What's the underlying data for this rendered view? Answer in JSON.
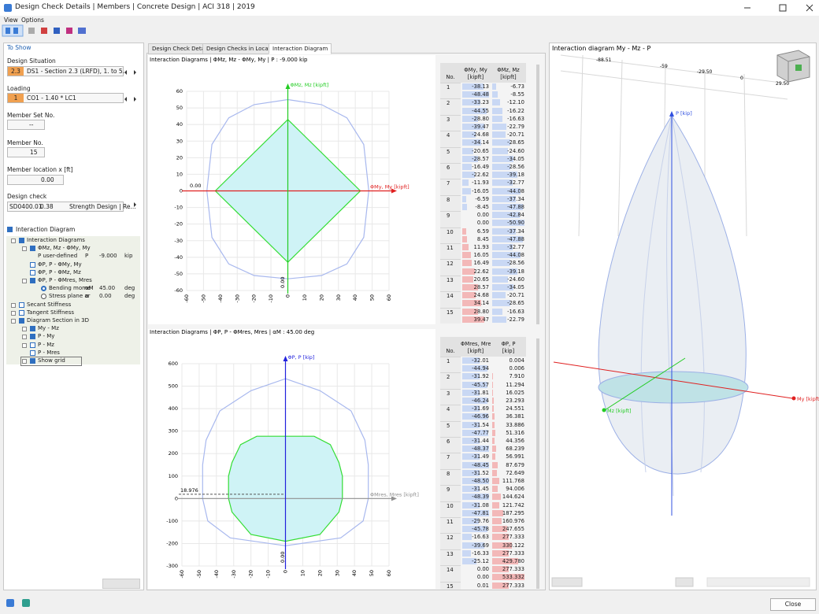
{
  "window": {
    "title": "Design Check Details | Members | Concrete Design | ACI 318 | 2019",
    "menu": [
      "View",
      "Options"
    ],
    "close": "Close"
  },
  "left_panel": {
    "header": "To Show",
    "design_situation": {
      "label": "Design Situation",
      "badge": "2.3",
      "value": "DS1 - Section 2.3 (LRFD), 1. to 5."
    },
    "loading": {
      "label": "Loading",
      "badge": "1",
      "value": "CO1 - 1.40 * LC1"
    },
    "member_set": {
      "label": "Member Set No.",
      "value": "--"
    },
    "member": {
      "label": "Member No.",
      "value": "15"
    },
    "location": {
      "label": "Member location x [ft]",
      "value": "0.00"
    },
    "design_check": {
      "label": "Design check",
      "id": "SD0400.01",
      "ratio": "0.38",
      "value": "Strength Design | Re..."
    },
    "interaction_diagram": "Interaction Diagram",
    "tree": [
      [
        "Interaction Diagrams"
      ],
      [
        "ΦMz, Mz - ΦMy, My"
      ],
      [
        "P user-defined",
        "P",
        "-9.000",
        "kip"
      ],
      [
        "ΦP, P - ΦMy, My"
      ],
      [
        "ΦP, P - ΦMz, Mz"
      ],
      [
        "ΦP, P - ΦMres, Mres"
      ],
      [
        "Bending mome",
        "αM",
        "45.00",
        "deg"
      ],
      [
        "Stress plane ar",
        "α",
        "0.00",
        "deg"
      ],
      [
        "Secant Stiffness"
      ],
      [
        "Tangent Stiffness"
      ],
      [
        "Diagram Section in 3D"
      ],
      [
        "My - Mz"
      ],
      [
        "P - My"
      ],
      [
        "P - Mz"
      ],
      [
        "P - Mres"
      ],
      [
        "Show grid"
      ]
    ]
  },
  "tabs": [
    "Design Check Details",
    "Design Checks in Location",
    "Interaction Diagram"
  ],
  "chart_data": [
    {
      "type": "line",
      "title": "Interaction Diagrams | ΦMz, Mz - ΦMy, My | P : -9.000 kip",
      "x_label": "ΦMy, My [kipft]",
      "y_label": "ΦMz, Mz [kipft]",
      "xlim": [
        -60,
        60
      ],
      "ylim": [
        -60,
        60
      ],
      "xticks": [
        -60,
        -50,
        -40,
        -30,
        -20,
        -10,
        0,
        10,
        20,
        30,
        40,
        50,
        60
      ],
      "yticks": [
        -60,
        -50,
        -40,
        -30,
        -20,
        -10,
        0,
        10,
        20,
        30,
        40,
        50,
        60
      ],
      "grid": true,
      "x_axis_color": "#e02020",
      "y_axis_color": "#22cc22",
      "annotations": [
        "0.00",
        "0.00"
      ],
      "series": [
        {
          "color": "#a8b8ee",
          "x": [
            0,
            20,
            35,
            45,
            48,
            45,
            35,
            20,
            0,
            -20,
            -35,
            -45,
            -48,
            -45,
            -35,
            -20,
            0
          ],
          "values": [
            55,
            52,
            44,
            28,
            0,
            -28,
            -44,
            -51,
            -53,
            -51,
            -44,
            -28,
            0,
            28,
            44,
            52,
            55
          ]
        },
        {
          "color": "#33dd33",
          "fill": "#cff3f6",
          "x": [
            0,
            43,
            0,
            -43,
            0
          ],
          "values": [
            43,
            0,
            -43,
            0,
            43
          ]
        }
      ]
    },
    {
      "type": "line",
      "title": "Interaction Diagrams | ΦP, P - ΦMres, Mres | αM : 45.00 deg",
      "x_label": "ΦMres, Mres [kipft]",
      "y_label": "ΦP, P [kip]",
      "xlim": [
        -60,
        60
      ],
      "ylim": [
        -300,
        600
      ],
      "xticks": [
        -60,
        -50,
        -40,
        -30,
        -20,
        -10,
        0,
        10,
        20,
        30,
        40,
        50,
        60
      ],
      "yticks": [
        -300,
        -200,
        -100,
        0,
        100,
        200,
        300,
        400,
        500,
        600
      ],
      "grid": true,
      "x_axis_color": "#909090",
      "y_axis_color": "#2222dd",
      "hline": 18.976,
      "annotations": [
        "0.00"
      ],
      "series": [
        {
          "color": "#a8b8ee",
          "x": [
            0,
            20,
            38,
            46,
            48,
            48,
            45,
            32,
            0,
            -32,
            -45,
            -48,
            -48,
            -46,
            -38,
            -20,
            0
          ],
          "values": [
            533,
            480,
            390,
            260,
            150,
            0,
            -100,
            -175,
            -210,
            -175,
            -100,
            0,
            150,
            260,
            390,
            480,
            533
          ]
        },
        {
          "color": "#33dd33",
          "fill": "#cff3f6",
          "x": [
            -16.6,
            16.6,
            26,
            31,
            33,
            33,
            31,
            20,
            0,
            -20,
            -31,
            -33,
            -33,
            -31,
            -26,
            -16.6
          ],
          "values": [
            277,
            277,
            240,
            160,
            100,
            0,
            -60,
            -160,
            -190,
            -160,
            -60,
            0,
            100,
            160,
            240,
            277
          ]
        }
      ]
    }
  ],
  "tables": [
    {
      "no": "No.",
      "columns": [
        {
          "name": "ΦMy, My",
          "unit": "[kipft]"
        },
        {
          "name": "ΦMz, Mz",
          "unit": "[kipft]"
        }
      ],
      "rows": [
        {
          "no": "1",
          "cells": [
            [
              "-38.13",
              "-6.73"
            ],
            [
              "-48.48",
              "-8.55"
            ]
          ]
        },
        {
          "no": "2",
          "cells": [
            [
              "-33.23",
              "-12.10"
            ],
            [
              "-44.55",
              "-16.22"
            ]
          ]
        },
        {
          "no": "3",
          "cells": [
            [
              "-28.80",
              "-16.63"
            ],
            [
              "-39.47",
              "-22.79"
            ]
          ]
        },
        {
          "no": "4",
          "cells": [
            [
              "-24.68",
              "-20.71"
            ],
            [
              "-34.14",
              "-28.65"
            ]
          ]
        },
        {
          "no": "5",
          "cells": [
            [
              "-20.65",
              "-24.60"
            ],
            [
              "-28.57",
              "-34.05"
            ]
          ]
        },
        {
          "no": "6",
          "cells": [
            [
              "-16.49",
              "-28.56"
            ],
            [
              "-22.62",
              "-39.18"
            ]
          ]
        },
        {
          "no": "7",
          "cells": [
            [
              "-11.93",
              "-32.77"
            ],
            [
              "-16.05",
              "-44.08"
            ]
          ]
        },
        {
          "no": "8",
          "cells": [
            [
              "-6.59",
              "-37.34"
            ],
            [
              "-8.45",
              "-47.88"
            ]
          ]
        },
        {
          "no": "9",
          "cells": [
            [
              "0.00",
              "-42.84"
            ],
            [
              "0.00",
              "-50.90"
            ]
          ]
        },
        {
          "no": "10",
          "cells": [
            [
              "6.59",
              "-37.34"
            ],
            [
              "8.45",
              "-47.88"
            ]
          ]
        },
        {
          "no": "11",
          "cells": [
            [
              "11.93",
              "-32.77"
            ],
            [
              "16.05",
              "-44.08"
            ]
          ]
        },
        {
          "no": "12",
          "cells": [
            [
              "16.49",
              "-28.56"
            ],
            [
              "22.62",
              "-39.18"
            ]
          ]
        },
        {
          "no": "13",
          "cells": [
            [
              "20.65",
              "-24.60"
            ],
            [
              "28.57",
              "-34.05"
            ]
          ]
        },
        {
          "no": "14",
          "cells": [
            [
              "24.68",
              "-20.71"
            ],
            [
              "34.14",
              "-28.65"
            ]
          ]
        },
        {
          "no": "15",
          "cells": [
            [
              "28.80",
              "-16.63"
            ],
            [
              "39.47",
              "-22.79"
            ]
          ]
        }
      ]
    },
    {
      "no": "No.",
      "columns": [
        {
          "name": "ΦMres, Mres",
          "unit": "[kipft]"
        },
        {
          "name": "ΦP, P",
          "unit": "[kip]"
        }
      ],
      "rows": [
        {
          "no": "1",
          "cells": [
            [
              "-32.01",
              "0.004"
            ],
            [
              "-44.94",
              "0.006"
            ]
          ]
        },
        {
          "no": "2",
          "cells": [
            [
              "-31.92",
              "7.910"
            ],
            [
              "-45.57",
              "11.294"
            ]
          ]
        },
        {
          "no": "3",
          "cells": [
            [
              "-31.81",
              "16.025"
            ],
            [
              "-46.24",
              "23.293"
            ]
          ]
        },
        {
          "no": "4",
          "cells": [
            [
              "-31.69",
              "24.551"
            ],
            [
              "-46.96",
              "36.381"
            ]
          ]
        },
        {
          "no": "5",
          "cells": [
            [
              "-31.54",
              "33.886"
            ],
            [
              "-47.77",
              "51.316"
            ]
          ]
        },
        {
          "no": "6",
          "cells": [
            [
              "-31.44",
              "44.356"
            ],
            [
              "-48.37",
              "68.239"
            ]
          ]
        },
        {
          "no": "7",
          "cells": [
            [
              "-31.49",
              "56.991"
            ],
            [
              "-48.45",
              "87.679"
            ]
          ]
        },
        {
          "no": "8",
          "cells": [
            [
              "-31.52",
              "72.649"
            ],
            [
              "-48.50",
              "111.768"
            ]
          ]
        },
        {
          "no": "9",
          "cells": [
            [
              "-31.45",
              "94.006"
            ],
            [
              "-48.39",
              "144.624"
            ]
          ]
        },
        {
          "no": "10",
          "cells": [
            [
              "-31.08",
              "121.742"
            ],
            [
              "-47.81",
              "187.295"
            ]
          ]
        },
        {
          "no": "11",
          "cells": [
            [
              "-29.76",
              "160.976"
            ],
            [
              "-45.78",
              "247.655"
            ]
          ]
        },
        {
          "no": "12",
          "cells": [
            [
              "-16.63",
              "277.333"
            ],
            [
              "-39.69",
              "330.122"
            ]
          ]
        },
        {
          "no": "13",
          "cells": [
            [
              "-16.33",
              "277.333"
            ],
            [
              "-25.12",
              "429.780"
            ]
          ]
        },
        {
          "no": "14",
          "cells": [
            [
              "0.00",
              "277.333"
            ],
            [
              "0.00",
              "533.332"
            ]
          ]
        },
        {
          "no": "15",
          "cells": [
            [
              "0.01",
              "277.333"
            ]
          ]
        }
      ]
    }
  ],
  "view3d": {
    "title": "Interaction diagram My - Mz - P",
    "grid_labels": [
      "-88.51",
      "-59",
      "-29.50",
      "0",
      "29.50"
    ],
    "p_axis": "P [kip]",
    "my_axis": "My [kipft]",
    "mz_axis": "Mz [kipft]"
  }
}
